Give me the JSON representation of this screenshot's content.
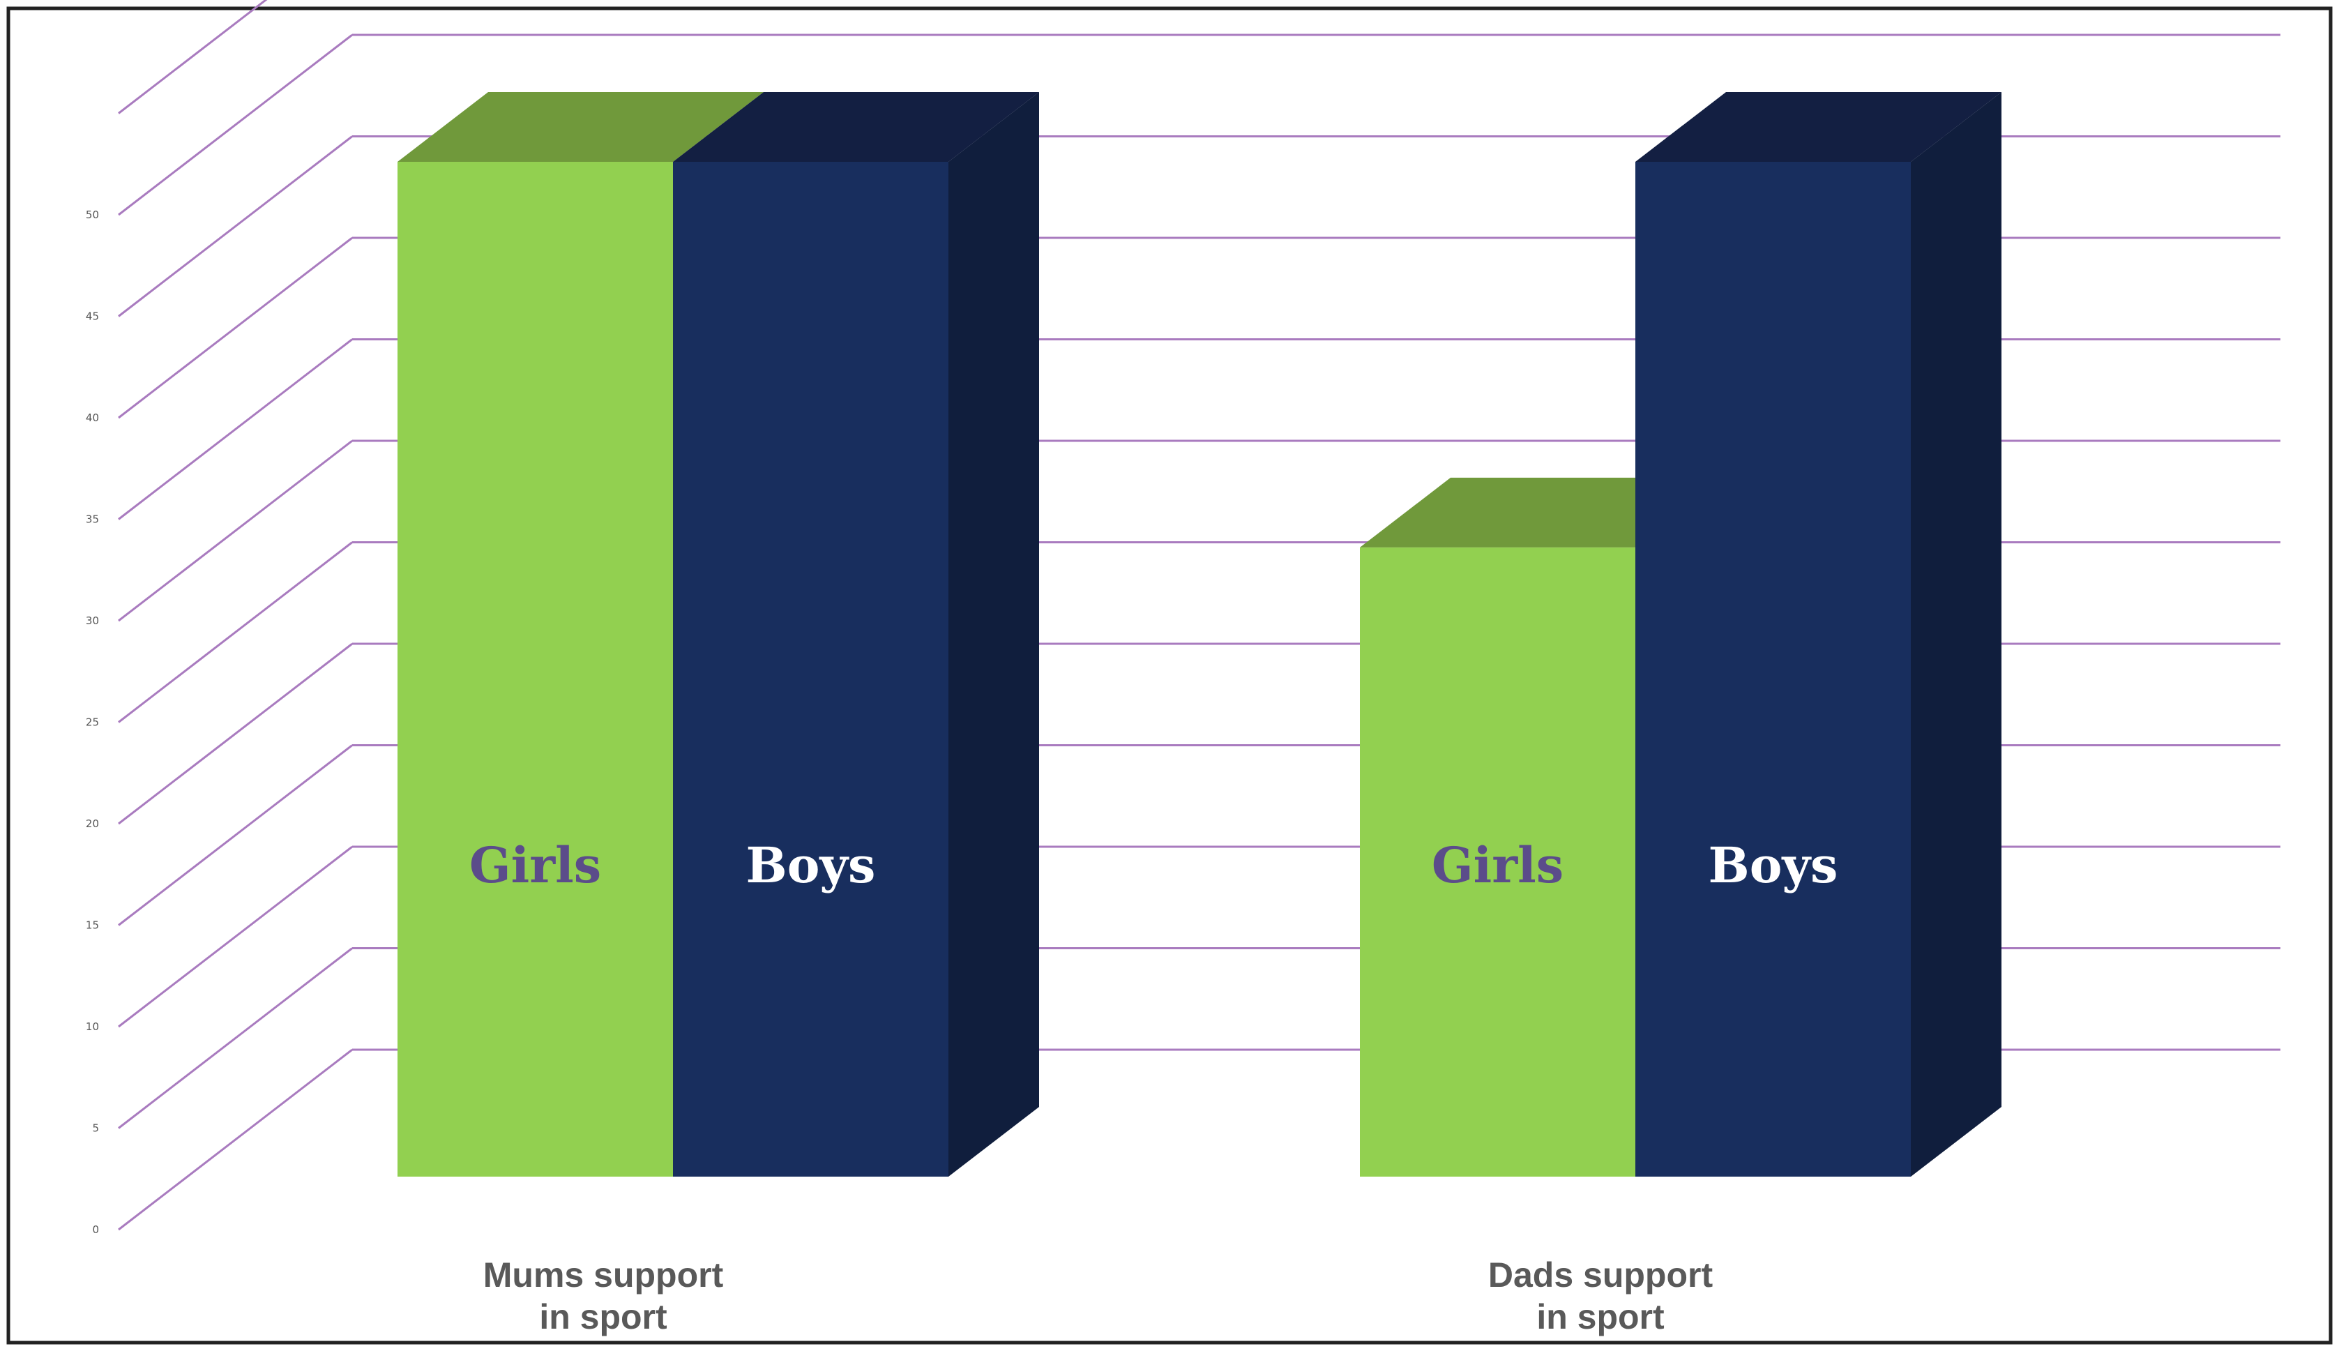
{
  "chart_data": {
    "type": "bar",
    "title": "",
    "xlabel": "",
    "ylabel": "",
    "categories": [
      "Mums support in sport",
      "Dads support in sport"
    ],
    "category_lines": [
      [
        "Mums support",
        "in sport"
      ],
      [
        "Dads support",
        "in sport"
      ]
    ],
    "series": [
      {
        "name": "Girls",
        "values": [
          50,
          31
        ],
        "color": "#92d050",
        "top_color": "#70993b",
        "label_color": "#5b4c8a"
      },
      {
        "name": "Boys",
        "values": [
          50,
          50
        ],
        "color": "#182e5e",
        "side_color": "#101e3d",
        "top_color": "#131f42",
        "label_color": "#ffffff"
      }
    ],
    "y_ticks": [
      "0",
      "5",
      "10",
      "15",
      "20",
      "25",
      "30",
      "35",
      "40",
      "45",
      "50"
    ],
    "ylim": [
      0,
      55
    ],
    "grid": true,
    "gridline_color": "#a97bbf",
    "three_d": true,
    "legend": "none"
  }
}
